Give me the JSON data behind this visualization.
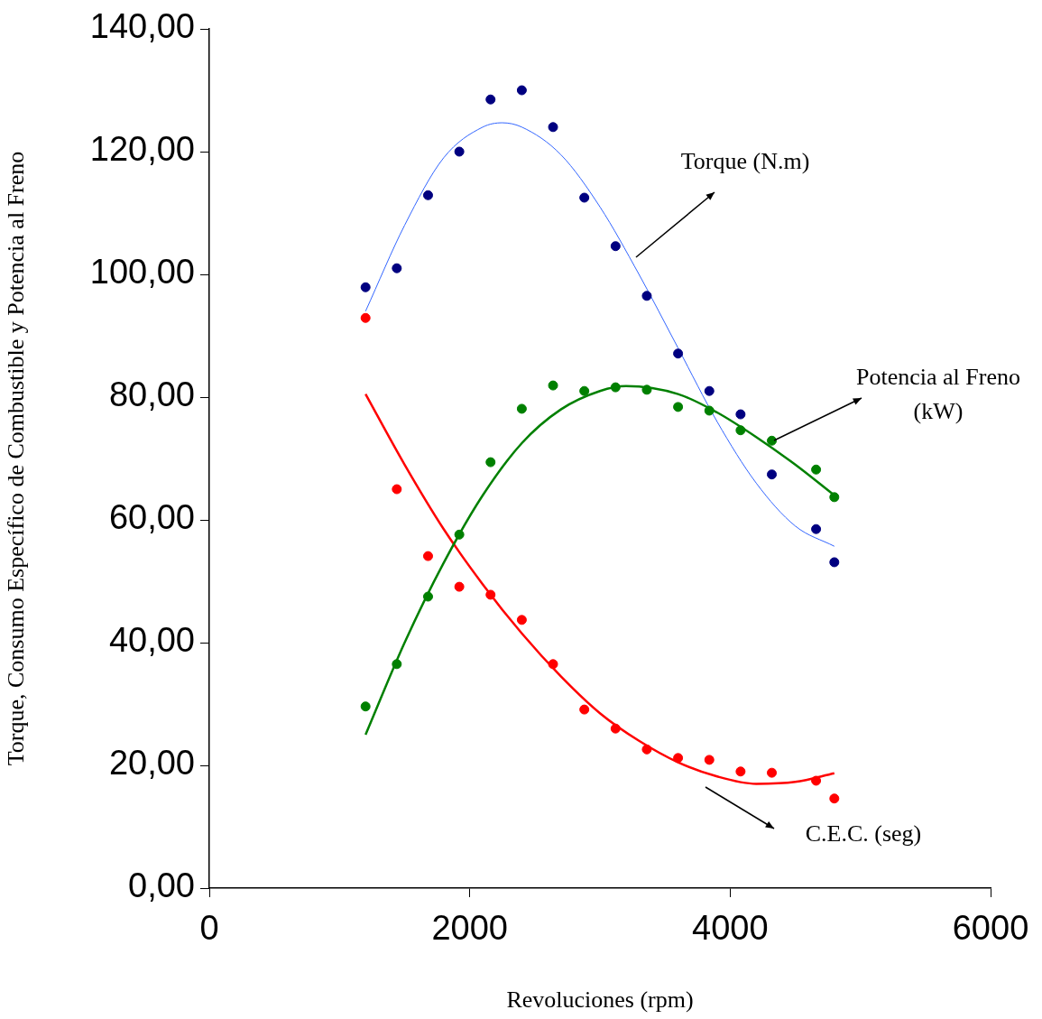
{
  "chart_data": {
    "type": "scatter",
    "xlabel": "Revoluciones (rpm)",
    "ylabel": "Torque, Consumo Específico de Combustible y Potencia al Freno",
    "x": [
      1200,
      1440,
      1680,
      1920,
      2160,
      2400,
      2640,
      2880,
      3120,
      3360,
      3600,
      3840,
      4080,
      4320,
      4660,
      4800
    ],
    "xlim": [
      0,
      6000
    ],
    "xticks": [
      0,
      2000,
      4000,
      6000
    ],
    "ylim": [
      0,
      140
    ],
    "yticks": [
      {
        "value": 0,
        "label": "0,00"
      },
      {
        "value": 20,
        "label": "20,00"
      },
      {
        "value": 40,
        "label": "40,00"
      },
      {
        "value": 60,
        "label": "60,00"
      },
      {
        "value": 80,
        "label": "80,00"
      },
      {
        "value": 100,
        "label": "100,00"
      },
      {
        "value": 120,
        "label": "120,00"
      },
      {
        "value": 140,
        "label": "140,00"
      }
    ],
    "grid": false,
    "legend": false,
    "marker": "circle",
    "series": [
      {
        "color": "#000080",
        "values": [
          97.9,
          101.0,
          112.9,
          120.0,
          128.5,
          130.0,
          124.0,
          112.5,
          104.6,
          96.5,
          87.1,
          81.0,
          77.2,
          67.4,
          58.5,
          53.1
        ]
      },
      {
        "color": "#008000",
        "values": [
          29.6,
          36.5,
          47.5,
          57.6,
          69.4,
          78.1,
          81.9,
          81.0,
          81.6,
          81.2,
          78.4,
          77.8,
          74.6,
          72.9,
          68.2,
          63.7
        ]
      },
      {
        "color": "#ff0000",
        "values": [
          92.9,
          65.0,
          54.1,
          49.1,
          47.8,
          43.7,
          36.5,
          29.1,
          26.0,
          22.6,
          21.2,
          20.9,
          19.0,
          18.8,
          17.5,
          14.6
        ]
      },
      {
        "type": "line",
        "color": "#3366ff",
        "marker": "none",
        "x": [
          1200,
          1500,
          1800,
          2100,
          2250,
          2400,
          2700,
          3000,
          3300,
          3600,
          3900,
          4200,
          4500,
          4800
        ],
        "values": [
          94,
          108,
          119,
          124,
          124.7,
          124,
          119.5,
          111,
          100,
          88,
          76,
          66,
          59,
          55.7
        ]
      },
      {
        "type": "line",
        "color": "#008000",
        "marker": "none",
        "x": [
          1200,
          1500,
          1800,
          2100,
          2400,
          2700,
          3000,
          3200,
          3600,
          3900,
          4200,
          4500,
          4800
        ],
        "values": [
          25,
          40,
          53,
          64,
          72.5,
          78,
          81,
          81.8,
          80.5,
          77.5,
          73.5,
          69,
          64
        ]
      },
      {
        "type": "line",
        "color": "#ff0000",
        "marker": "none",
        "x": [
          1200,
          1500,
          1800,
          2100,
          2400,
          2700,
          3000,
          3300,
          3600,
          3900,
          4200,
          4500,
          4800
        ],
        "values": [
          80.5,
          69,
          58.5,
          49.5,
          41.5,
          34.5,
          28.5,
          24,
          20.5,
          18.2,
          17,
          17.3,
          18.7
        ]
      }
    ],
    "annotations": [
      "Torque (N.m)",
      "Potencia al Freno\n(kW)",
      "C.E.C. (seg)"
    ]
  }
}
